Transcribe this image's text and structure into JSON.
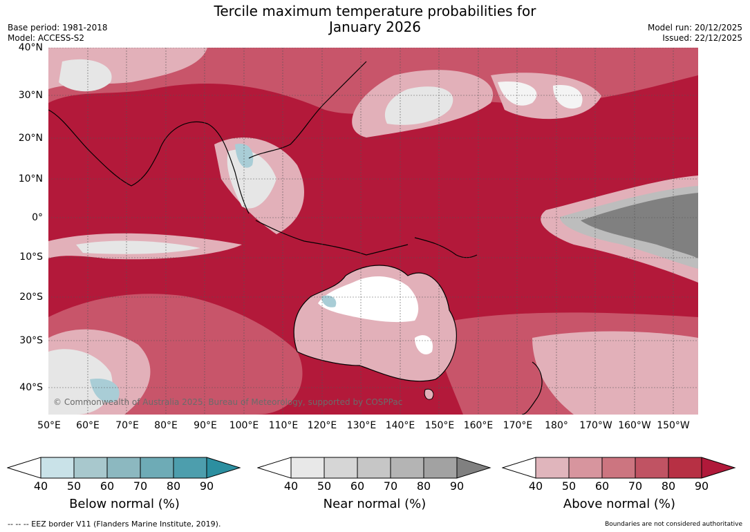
{
  "header": {
    "title_line1": "Tercile maximum temperature probabilities for",
    "title_line2": "January 2026",
    "base_period": "Base period: 1981-2018",
    "model": "Model: ACCESS-S2",
    "model_run": "Model run: 20/12/2025",
    "issued": "Issued: 22/12/2025"
  },
  "map": {
    "lat_labels": [
      "40°N",
      "30°N",
      "20°N",
      "10°N",
      "0°",
      "10°S",
      "20°S",
      "30°S",
      "40°S"
    ],
    "lon_labels": [
      "50°E",
      "60°E",
      "70°E",
      "80°E",
      "90°E",
      "100°E",
      "110°E",
      "120°E",
      "130°E",
      "140°E",
      "150°E",
      "160°E",
      "170°E",
      "180°",
      "170°W",
      "160°W",
      "150°W"
    ],
    "copyright": "© Commonwealth of Australia 2025, Bureau of Meteorology, supported by COSPPac",
    "colors": {
      "above_strong": "#b3193a",
      "above_mid": "#c8556a",
      "above_light": "#e2b0b9",
      "near_light": "#e6e6e6",
      "near_dark": "#808080",
      "below": "#a9cdd6",
      "land_outline": "#000000",
      "border": "#808080"
    }
  },
  "colorbars": [
    {
      "label": "Below normal (%)",
      "ticks": [
        "40",
        "50",
        "60",
        "70",
        "80",
        "90"
      ],
      "colors": [
        "#c9e2e8",
        "#a8c8cd",
        "#8cb8c0",
        "#6eabb6",
        "#4d9ead",
        "#2c8fa0"
      ]
    },
    {
      "label": "Near normal (%)",
      "ticks": [
        "40",
        "50",
        "60",
        "70",
        "80",
        "90"
      ],
      "colors": [
        "#e8e8e8",
        "#d6d6d6",
        "#c6c6c6",
        "#b4b4b4",
        "#a2a2a2",
        "#808080"
      ]
    },
    {
      "label": "Above normal (%)",
      "ticks": [
        "40",
        "50",
        "60",
        "70",
        "80",
        "90"
      ],
      "colors": [
        "#e0b5bc",
        "#d7959e",
        "#cc7580",
        "#c05363",
        "#b73044",
        "#b0193a"
      ]
    }
  ],
  "footer": {
    "eez_note": "--  --  -- EEZ border V11 (Flanders Marine Institute, 2019).",
    "disclaimer": "Boundaries are not considered authoritative"
  }
}
